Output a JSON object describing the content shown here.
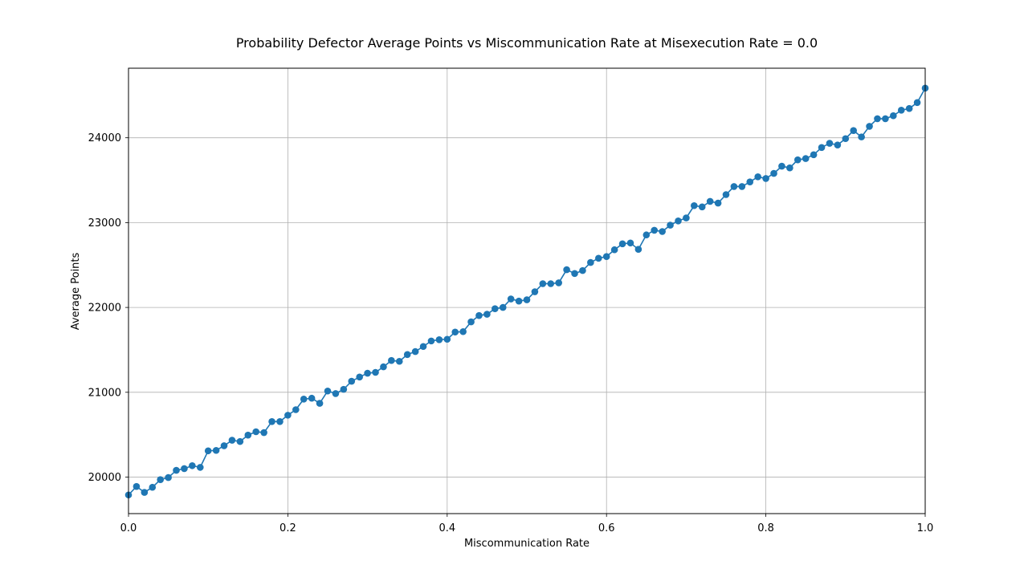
{
  "chart_data": {
    "type": "line",
    "title": "Probability Defector Average Points vs Miscommunication Rate at Misexecution Rate = 0.0",
    "xlabel": "Miscommunication Rate",
    "ylabel": "Average Points",
    "xlim": [
      0.0,
      1.0
    ],
    "ylim": [
      19570,
      24820
    ],
    "xticks": [
      0.0,
      0.2,
      0.4,
      0.6,
      0.8,
      1.0
    ],
    "xtick_labels": [
      "0.0",
      "0.2",
      "0.4",
      "0.6",
      "0.8",
      "1.0"
    ],
    "yticks": [
      20000,
      21000,
      22000,
      23000,
      24000
    ],
    "ytick_labels": [
      "20000",
      "21000",
      "22000",
      "23000",
      "24000"
    ],
    "grid": true,
    "marker": "circle",
    "color": "#1f77b4",
    "series": [
      {
        "x": [
          0.0,
          0.01,
          0.02,
          0.03,
          0.04,
          0.05,
          0.06,
          0.07,
          0.08,
          0.09,
          0.1,
          0.11,
          0.12,
          0.13,
          0.14,
          0.15,
          0.16,
          0.17,
          0.18,
          0.19,
          0.2,
          0.21,
          0.22,
          0.23,
          0.24,
          0.25,
          0.26,
          0.27,
          0.28,
          0.29,
          0.3,
          0.31,
          0.32,
          0.33,
          0.34,
          0.35,
          0.36,
          0.37,
          0.38,
          0.39,
          0.4,
          0.41,
          0.42,
          0.43,
          0.44,
          0.45,
          0.46,
          0.47,
          0.48,
          0.49,
          0.5,
          0.51,
          0.52,
          0.53,
          0.54,
          0.55,
          0.56,
          0.57,
          0.58,
          0.59,
          0.6,
          0.61,
          0.62,
          0.63,
          0.64,
          0.65,
          0.66,
          0.67,
          0.68,
          0.69,
          0.7,
          0.71,
          0.72,
          0.73,
          0.74,
          0.75,
          0.76,
          0.77,
          0.78,
          0.79,
          0.8,
          0.81,
          0.82,
          0.83,
          0.84,
          0.85,
          0.86,
          0.87,
          0.88,
          0.89,
          0.9,
          0.91,
          0.92,
          0.93,
          0.94,
          0.95,
          0.96,
          0.97,
          0.98,
          0.99,
          1.0
        ],
        "y": [
          19790,
          19890,
          19820,
          19880,
          19970,
          19995,
          20080,
          20100,
          20135,
          20115,
          20310,
          20315,
          20370,
          20435,
          20420,
          20495,
          20535,
          20525,
          20655,
          20655,
          20730,
          20795,
          20920,
          20930,
          20870,
          21015,
          20985,
          21035,
          21130,
          21180,
          21225,
          21235,
          21300,
          21375,
          21365,
          21445,
          21480,
          21540,
          21605,
          21620,
          21625,
          21710,
          21715,
          21830,
          21905,
          21920,
          21985,
          22000,
          22100,
          22075,
          22090,
          22185,
          22280,
          22280,
          22290,
          22445,
          22400,
          22435,
          22530,
          22580,
          22600,
          22680,
          22750,
          22760,
          22685,
          22855,
          22910,
          22895,
          22970,
          23020,
          23055,
          23200,
          23185,
          23250,
          23230,
          23330,
          23425,
          23425,
          23480,
          23540,
          23520,
          23580,
          23665,
          23645,
          23740,
          23755,
          23800,
          23885,
          23935,
          23915,
          23990,
          24085,
          24010,
          24135,
          24225,
          24225,
          24260,
          24325,
          24345,
          24415,
          24585
        ]
      }
    ]
  }
}
